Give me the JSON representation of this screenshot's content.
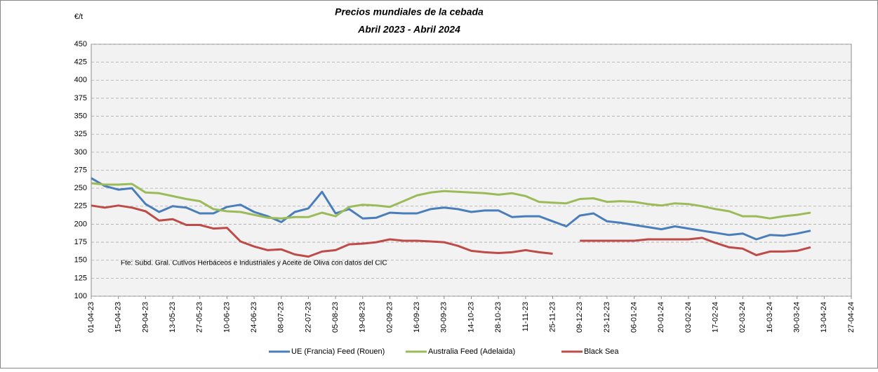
{
  "chart_data": {
    "type": "line",
    "title": "Precios mundiales de la cebada",
    "subtitle": "Abril 2023 - Abril 2024",
    "y_axis_label": "€/t",
    "annotation": "Fte: Subd. Gral. Cutlvos Herbáceos e Industriales y Aceite de Oliva con datos del CIC",
    "categories": [
      "01-04-23",
      null,
      "15-04-23",
      null,
      "29-04-23",
      null,
      "13-05-23",
      null,
      "27-05-23",
      null,
      "10-06-23",
      null,
      "24-06-23",
      null,
      "08-07-23",
      null,
      "22-07-23",
      null,
      "05-08-23",
      null,
      "19-08-23",
      null,
      "02-09-23",
      null,
      "16-09-23",
      null,
      "30-09-23",
      null,
      "14-10-23",
      null,
      "28-10-23",
      null,
      "11-11-23",
      null,
      "25-11-23",
      null,
      "09-12-23",
      null,
      "23-12-23",
      null,
      "06-01-24",
      null,
      "20-01-24",
      null,
      "03-02-24",
      null,
      "17-02-24",
      null,
      "02-03-24",
      null,
      "16-03-24",
      null,
      "30-03-24",
      null,
      "13-04-24",
      null,
      "27-04-24"
    ],
    "series": [
      {
        "name": "UE (Francia) Feed (Rouen)",
        "color": "#4a7ebb",
        "values": [
          264,
          253,
          248,
          250,
          228,
          217,
          225,
          223,
          215,
          215,
          224,
          227,
          217,
          211,
          203,
          217,
          222,
          245,
          215,
          221,
          208,
          209,
          216,
          215,
          215,
          221,
          223,
          221,
          217,
          219,
          219,
          210,
          211,
          211,
          204,
          197,
          212,
          215,
          204,
          202,
          199,
          196,
          193,
          197,
          194,
          191,
          188,
          185,
          187,
          179,
          185,
          184,
          187,
          191,
          null,
          null,
          null
        ]
      },
      {
        "name": "Australia Feed (Adelaida)",
        "color": "#9bbb59",
        "values": [
          257,
          255,
          255,
          256,
          244,
          243,
          239,
          235,
          232,
          221,
          218,
          217,
          213,
          209,
          208,
          210,
          210,
          216,
          211,
          224,
          227,
          226,
          224,
          232,
          240,
          244,
          246,
          245,
          244,
          243,
          241,
          243,
          239,
          231,
          230,
          229,
          235,
          236,
          231,
          232,
          231,
          228,
          226,
          229,
          228,
          225,
          221,
          218,
          211,
          211,
          208,
          211,
          213,
          216,
          null,
          null,
          null
        ]
      },
      {
        "name": "Black Sea",
        "color": "#be4b48",
        "values": [
          226,
          223,
          226,
          223,
          218,
          205,
          207,
          199,
          199,
          194,
          195,
          176,
          169,
          164,
          165,
          158,
          155,
          162,
          164,
          172,
          173,
          175,
          179,
          177,
          177,
          176,
          175,
          170,
          163,
          161,
          160,
          161,
          164,
          161,
          159,
          null,
          177,
          177,
          177,
          177,
          177,
          179,
          179,
          179,
          179,
          181,
          174,
          168,
          166,
          157,
          162,
          162,
          163,
          168,
          null,
          null,
          null
        ]
      }
    ],
    "ylim": [
      100,
      450
    ],
    "yticks": [
      100,
      125,
      150,
      175,
      200,
      225,
      250,
      275,
      300,
      325,
      350,
      375,
      400,
      425,
      450
    ],
    "grid": true
  }
}
